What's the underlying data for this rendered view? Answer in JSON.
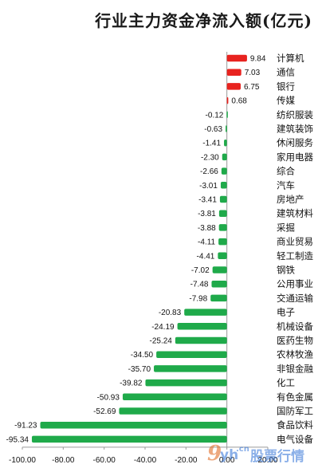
{
  "chart_data": {
    "type": "bar",
    "orientation": "horizontal",
    "title": "行业主力资金净流入额(亿元)",
    "categories": [
      "计算机",
      "通信",
      "银行",
      "传媒",
      "纺织服装",
      "建筑装饰",
      "休闲服务",
      "家用电器",
      "综合",
      "汽车",
      "房地产",
      "建筑材料",
      "采掘",
      "商业贸易",
      "轻工制造",
      "钢铁",
      "公用事业",
      "交通运输",
      "电子",
      "机械设备",
      "医药生物",
      "农林牧渔",
      "非银金融",
      "化工",
      "有色金属",
      "国防军工",
      "食品饮料",
      "电气设备"
    ],
    "values": [
      9.84,
      7.03,
      6.75,
      0.68,
      -0.12,
      -0.63,
      -1.41,
      -2.3,
      -2.66,
      -3.01,
      -3.41,
      -3.81,
      -3.88,
      -4.11,
      -4.41,
      -7.02,
      -7.48,
      -7.98,
      -20.83,
      -24.19,
      -25.24,
      -34.5,
      -35.7,
      -39.82,
      -50.93,
      -52.69,
      -91.23,
      -95.34
    ],
    "value_labels": [
      "9.84",
      "7.03",
      "6.75",
      "0.68",
      "-0.12",
      "-0.63",
      "-1.41",
      "-2.30",
      "-2.66",
      "-3.01",
      "-3.41",
      "-3.81",
      "-3.88",
      "-4.11",
      "-4.41",
      "-7.02",
      "-7.48",
      "-7.98",
      "-20.83",
      "-24.19",
      "-25.24",
      "-34.50",
      "-35.70",
      "-39.82",
      "-50.93",
      "-52.69",
      "-91.23",
      "-95.34"
    ],
    "xlim": [
      -100,
      20
    ],
    "x_ticks": [
      -100,
      -80,
      -60,
      -40,
      -20,
      0,
      20
    ],
    "x_tick_labels": [
      "-100.00",
      "-80.00",
      "-60.00",
      "-40.00",
      "-20.00",
      "0.00",
      "20.00"
    ],
    "grid": false,
    "legend": "none",
    "colors": {
      "positive": "#e8231f",
      "negative": "#1faa4a",
      "axis": "#9a9a9a"
    }
  },
  "watermark": {
    "brand_nine": "9",
    "domain": "yh",
    "cn": ".cn",
    "text": "股票行情"
  }
}
